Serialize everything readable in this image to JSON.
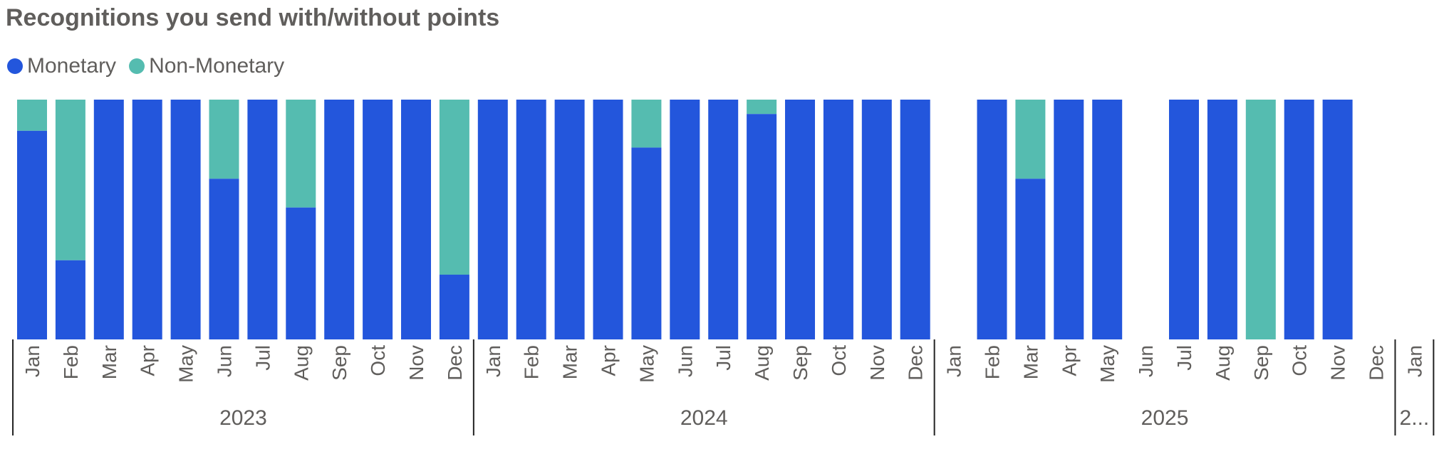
{
  "colors": {
    "monetary": "#2356dc",
    "non_monetary": "#55bcb0",
    "text": "#605e5c",
    "axis": "#222222"
  },
  "chart_data": {
    "type": "bar",
    "stacked": "100%",
    "title": "Recognitions you send with/without points",
    "legend": {
      "position": "top-left",
      "items": [
        "Monetary",
        "Non-Monetary"
      ]
    },
    "ylim": [
      0,
      100
    ],
    "categories": [
      "Jan",
      "Feb",
      "Mar",
      "Apr",
      "May",
      "Jun",
      "Jul",
      "Aug",
      "Sep",
      "Oct",
      "Nov",
      "Dec",
      "Jan",
      "Feb",
      "Mar",
      "Apr",
      "May",
      "Jun",
      "Jul",
      "Aug",
      "Sep",
      "Oct",
      "Nov",
      "Dec",
      "Jan",
      "Feb",
      "Mar",
      "Apr",
      "May",
      "Jun",
      "Jul",
      "Aug",
      "Sep",
      "Oct",
      "Nov",
      "Dec",
      "Jan"
    ],
    "year_groups": [
      {
        "label": "2023",
        "count": 12
      },
      {
        "label": "2024",
        "count": 12
      },
      {
        "label": "2025",
        "count": 12
      },
      {
        "label": "2...",
        "count": 1
      }
    ],
    "series": [
      {
        "name": "Monetary",
        "values": [
          87,
          33,
          100,
          100,
          100,
          67,
          100,
          55,
          100,
          100,
          100,
          27,
          100,
          100,
          100,
          100,
          80,
          100,
          100,
          94,
          100,
          100,
          100,
          100,
          null,
          100,
          67,
          100,
          100,
          null,
          100,
          100,
          0,
          100,
          100,
          null,
          null
        ]
      },
      {
        "name": "Non-Monetary",
        "values": [
          13,
          67,
          0,
          0,
          0,
          33,
          0,
          45,
          0,
          0,
          0,
          73,
          0,
          0,
          0,
          0,
          20,
          0,
          0,
          6,
          0,
          0,
          0,
          0,
          null,
          0,
          33,
          0,
          0,
          null,
          0,
          0,
          100,
          0,
          0,
          null,
          null
        ]
      }
    ]
  }
}
